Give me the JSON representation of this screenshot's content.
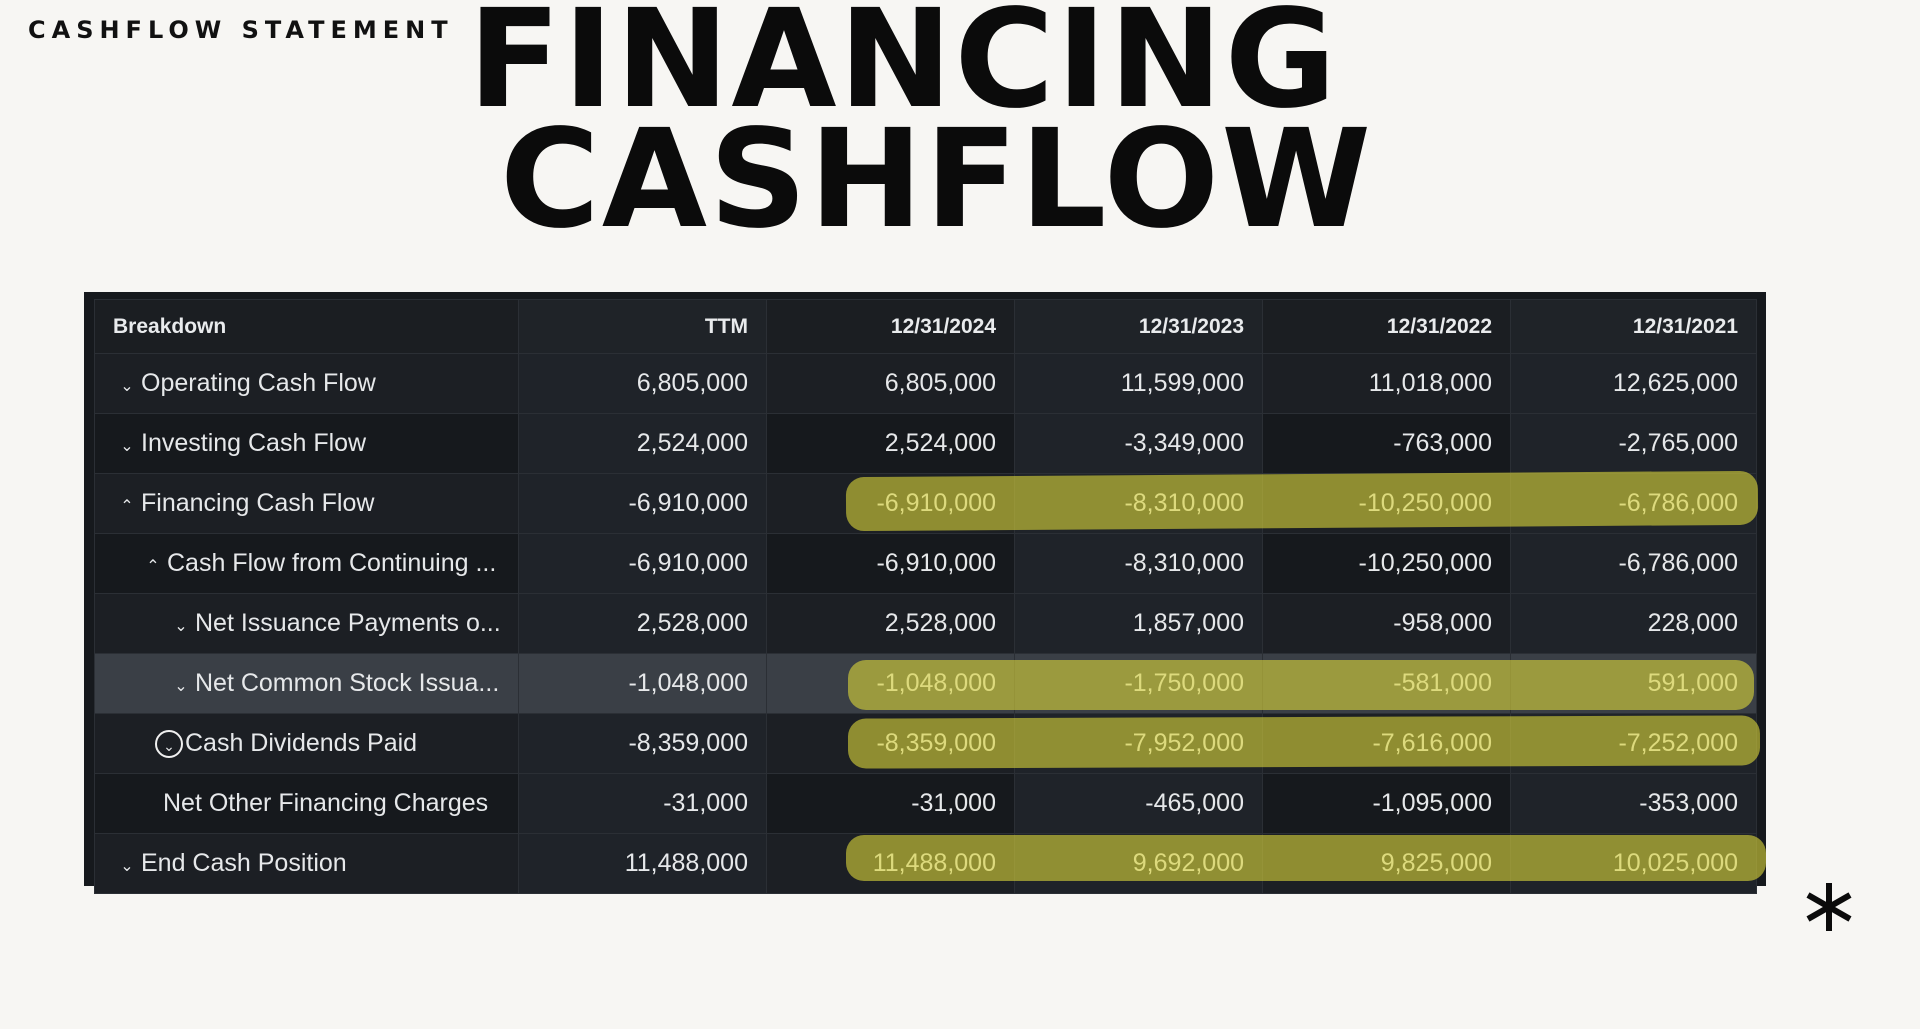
{
  "eyebrow": "CASHFLOW STATEMENT",
  "headline": {
    "line1": "FINANCING",
    "line2": "CASHFLOW"
  },
  "colors": {
    "background": "#f7f6f3",
    "table_bg": "#16191d",
    "highlight": "#d6d23a"
  },
  "icons": {
    "decor": "asterisk-icon",
    "expanded": "chevron-up-icon",
    "collapsed": "chevron-down-icon"
  },
  "table": {
    "headers": [
      "Breakdown",
      "TTM",
      "12/31/2024",
      "12/31/2023",
      "12/31/2022",
      "12/31/2021"
    ],
    "rows": [
      {
        "label": "Operating Cash Flow",
        "values": [
          "6,805,000",
          "6,805,000",
          "11,599,000",
          "11,018,000",
          "12,625,000"
        ]
      },
      {
        "label": "Investing Cash Flow",
        "values": [
          "2,524,000",
          "2,524,000",
          "-3,349,000",
          "-763,000",
          "-2,765,000"
        ]
      },
      {
        "label": "Financing Cash Flow",
        "values": [
          "-6,910,000",
          "-6,910,000",
          "-8,310,000",
          "-10,250,000",
          "-6,786,000"
        ]
      },
      {
        "label": "Cash Flow from Continuing ...",
        "values": [
          "-6,910,000",
          "-6,910,000",
          "-8,310,000",
          "-10,250,000",
          "-6,786,000"
        ]
      },
      {
        "label": "Net Issuance Payments o...",
        "values": [
          "2,528,000",
          "2,528,000",
          "1,857,000",
          "-958,000",
          "228,000"
        ]
      },
      {
        "label": "Net Common Stock Issua...",
        "values": [
          "-1,048,000",
          "-1,048,000",
          "-1,750,000",
          "-581,000",
          "591,000"
        ]
      },
      {
        "label": "Cash Dividends Paid",
        "values": [
          "-8,359,000",
          "-8,359,000",
          "-7,952,000",
          "-7,616,000",
          "-7,252,000"
        ]
      },
      {
        "label": "Net Other Financing Charges",
        "values": [
          "-31,000",
          "-31,000",
          "-465,000",
          "-1,095,000",
          "-353,000"
        ]
      },
      {
        "label": "End Cash Position",
        "values": [
          "11,488,000",
          "11,488,000",
          "9,692,000",
          "9,825,000",
          "10,025,000"
        ]
      }
    ]
  }
}
